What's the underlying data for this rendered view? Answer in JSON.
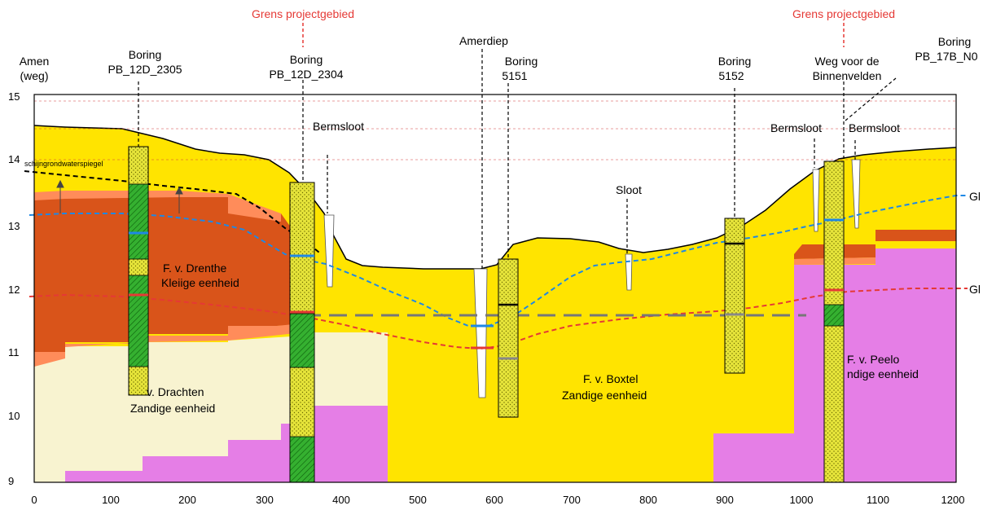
{
  "labels": {
    "grens_left": "Grens projectgebied",
    "grens_right": "Grens projectgebied",
    "amen_1": "Amen",
    "amen_2": "(weg)",
    "boring_2305_1": "Boring",
    "boring_2305_2": "PB_12D_2305",
    "boring_2304_1": "Boring",
    "boring_2304_2": "PB_12D_2304",
    "amerdiep": "Amerdiep",
    "boring_5151_1": "Boring",
    "boring_5151_2": "5151",
    "boring_5152_1": "Boring",
    "boring_5152_2": "5152",
    "weg_1": "Weg voor de",
    "weg_2": "Binnenvelden",
    "boring_17b_1": "Boring",
    "boring_17b_2": "PB_17B_N0",
    "bermsloot_1": "Bermsloot",
    "bermsloot_2": "Bermsloot",
    "bermsloot_3": "Bermsloot",
    "sloot": "Sloot",
    "schijn": "schijngrondwaterspiegel",
    "gl_1": "Gl",
    "gl_2": "Gl",
    "drenthe_1": "F. v. Drenthe",
    "drenthe_2": "Kleiige eenheid",
    "drachten_1": "v. Drachten",
    "drachten_2": "Zandige eenheid",
    "boxtel_1": "F. v. Boxtel",
    "boxtel_2": "Zandige eenheid",
    "peelo_1": "F. v. Peelo",
    "peelo_2": "ndige eenheid"
  },
  "axes": {
    "x_ticks": [
      "0",
      "100",
      "200",
      "300",
      "400",
      "500",
      "600",
      "700",
      "800",
      "900",
      "1000",
      "1100",
      "1200"
    ],
    "y_ticks": [
      "15",
      "14",
      "13",
      "12",
      "11",
      "10",
      "9"
    ]
  },
  "colors": {
    "sand": "#ffe400",
    "clay": "#d9541a",
    "clay_light": "#ff8c5a",
    "drachten": "#f8f3d0",
    "peelo": "#e57ee6",
    "groundwater": "#1e88e5",
    "stijghoogte": "#e53935",
    "boring_fill": "#e8e83c",
    "boring_green": "#35b030"
  }
}
